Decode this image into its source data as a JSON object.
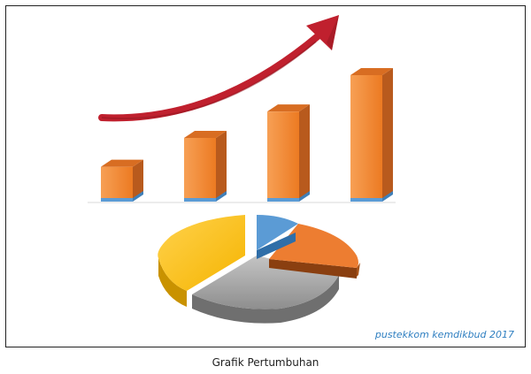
{
  "illustration": {
    "credit": "pustekkom kemdikbud 2017",
    "bar_levels": [
      0.27,
      0.5,
      0.71,
      1.0
    ],
    "colors": {
      "bar_front": "#f2872f",
      "bar_side": "#b85a1d",
      "bar_top": "#d86d22",
      "bar_base": "#5b9bd5",
      "arrow": "#c0202e",
      "pie_blue": "#5b9bd5",
      "pie_orange": "#ed7d31",
      "pie_gray": "#a5a5a5",
      "pie_yellow": "#ffc000"
    }
  },
  "caption": "Grafik Pertumbuhan"
}
